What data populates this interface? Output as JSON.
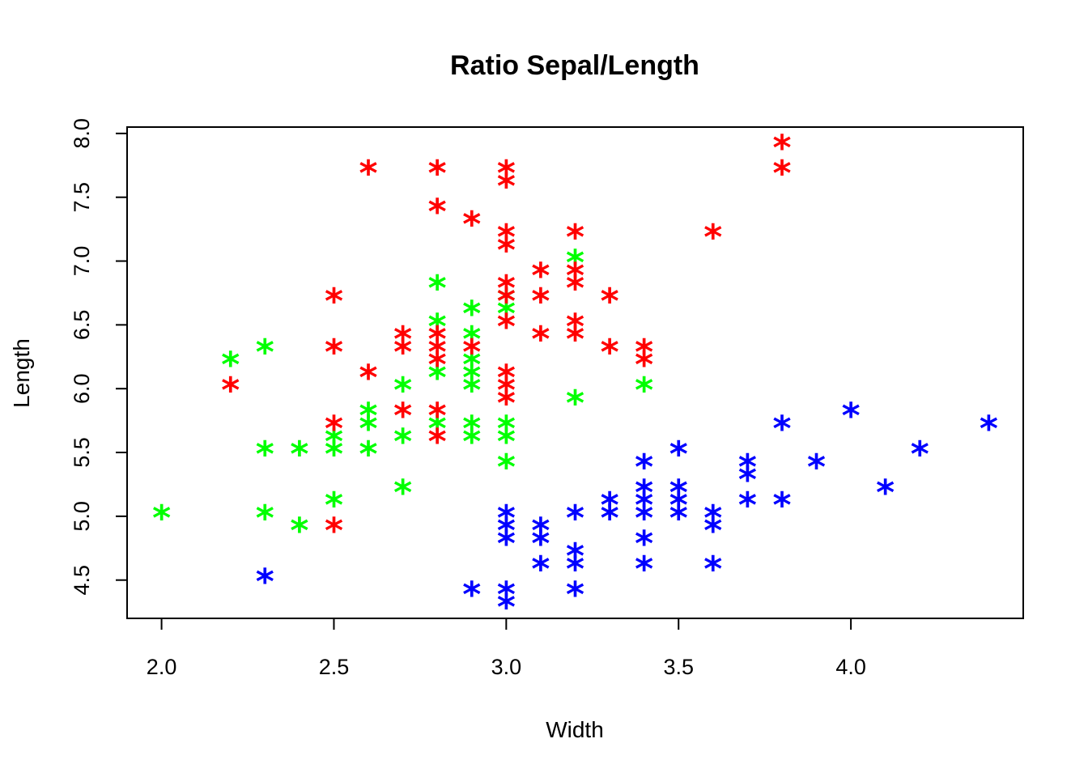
{
  "chart_data": {
    "type": "scatter",
    "title": "Ratio Sepal/Length",
    "xlabel": "Width",
    "ylabel": "Length",
    "xlim": [
      1.9,
      4.5
    ],
    "ylim": [
      4.2,
      8.05
    ],
    "xticks": [
      "2.0",
      "2.5",
      "3.0",
      "3.5",
      "4.0"
    ],
    "yticks": [
      "4.5",
      "5.0",
      "5.5",
      "6.0",
      "6.5",
      "7.0",
      "7.5",
      "8.0"
    ],
    "marker": "*",
    "grid": false,
    "legend": "none",
    "series": [
      {
        "color": "#0000ff",
        "points": [
          [
            2.3,
            4.5
          ],
          [
            2.9,
            4.4
          ],
          [
            3.0,
            4.4
          ],
          [
            3.0,
            4.3
          ],
          [
            3.0,
            5.0
          ],
          [
            3.0,
            4.9
          ],
          [
            3.0,
            4.8
          ],
          [
            3.1,
            4.9
          ],
          [
            3.1,
            4.8
          ],
          [
            3.1,
            4.6
          ],
          [
            3.2,
            5.0
          ],
          [
            3.2,
            4.7
          ],
          [
            3.2,
            4.6
          ],
          [
            3.2,
            4.4
          ],
          [
            3.3,
            5.1
          ],
          [
            3.3,
            5.0
          ],
          [
            3.4,
            5.4
          ],
          [
            3.4,
            5.2
          ],
          [
            3.4,
            5.1
          ],
          [
            3.4,
            5.0
          ],
          [
            3.4,
            4.8
          ],
          [
            3.4,
            4.6
          ],
          [
            3.5,
            5.5
          ],
          [
            3.5,
            5.2
          ],
          [
            3.5,
            5.1
          ],
          [
            3.5,
            5.0
          ],
          [
            3.6,
            5.0
          ],
          [
            3.6,
            4.9
          ],
          [
            3.6,
            4.6
          ],
          [
            3.7,
            5.4
          ],
          [
            3.7,
            5.3
          ],
          [
            3.7,
            5.1
          ],
          [
            3.8,
            5.7
          ],
          [
            3.8,
            5.1
          ],
          [
            3.9,
            5.4
          ],
          [
            4.0,
            5.8
          ],
          [
            4.1,
            5.2
          ],
          [
            4.2,
            5.5
          ],
          [
            4.4,
            5.7
          ]
        ]
      },
      {
        "color": "#00ff00",
        "points": [
          [
            2.0,
            5.0
          ],
          [
            2.2,
            6.2
          ],
          [
            2.3,
            6.3
          ],
          [
            2.3,
            5.5
          ],
          [
            2.3,
            5.0
          ],
          [
            2.4,
            5.5
          ],
          [
            2.4,
            4.9
          ],
          [
            2.5,
            5.6
          ],
          [
            2.5,
            5.5
          ],
          [
            2.5,
            5.1
          ],
          [
            2.6,
            5.8
          ],
          [
            2.6,
            5.7
          ],
          [
            2.6,
            5.5
          ],
          [
            2.7,
            6.0
          ],
          [
            2.7,
            5.6
          ],
          [
            2.7,
            5.2
          ],
          [
            2.8,
            6.8
          ],
          [
            2.8,
            6.5
          ],
          [
            2.8,
            6.1
          ],
          [
            2.8,
            5.7
          ],
          [
            2.9,
            6.6
          ],
          [
            2.9,
            6.4
          ],
          [
            2.9,
            6.2
          ],
          [
            2.9,
            6.1
          ],
          [
            2.9,
            6.0
          ],
          [
            2.9,
            5.7
          ],
          [
            2.9,
            5.6
          ],
          [
            3.0,
            6.7
          ],
          [
            3.0,
            6.6
          ],
          [
            3.0,
            5.7
          ],
          [
            3.0,
            5.6
          ],
          [
            3.0,
            5.4
          ],
          [
            3.2,
            7.0
          ],
          [
            3.2,
            5.9
          ],
          [
            3.4,
            6.0
          ]
        ]
      },
      {
        "color": "#ff0000",
        "points": [
          [
            2.2,
            6.0
          ],
          [
            2.5,
            6.7
          ],
          [
            2.5,
            6.3
          ],
          [
            2.5,
            5.7
          ],
          [
            2.5,
            4.9
          ],
          [
            2.6,
            7.7
          ],
          [
            2.6,
            6.1
          ],
          [
            2.7,
            6.4
          ],
          [
            2.7,
            6.3
          ],
          [
            2.7,
            5.8
          ],
          [
            2.8,
            7.7
          ],
          [
            2.8,
            7.4
          ],
          [
            2.8,
            6.4
          ],
          [
            2.8,
            6.3
          ],
          [
            2.8,
            6.2
          ],
          [
            2.8,
            5.8
          ],
          [
            2.8,
            5.6
          ],
          [
            2.9,
            7.3
          ],
          [
            2.9,
            6.3
          ],
          [
            3.0,
            7.7
          ],
          [
            3.0,
            7.6
          ],
          [
            3.0,
            7.2
          ],
          [
            3.0,
            7.1
          ],
          [
            3.0,
            6.8
          ],
          [
            3.0,
            6.7
          ],
          [
            3.0,
            6.5
          ],
          [
            3.0,
            6.1
          ],
          [
            3.0,
            6.0
          ],
          [
            3.0,
            5.9
          ],
          [
            3.1,
            6.9
          ],
          [
            3.1,
            6.7
          ],
          [
            3.1,
            6.4
          ],
          [
            3.2,
            7.2
          ],
          [
            3.2,
            6.9
          ],
          [
            3.2,
            6.8
          ],
          [
            3.2,
            6.5
          ],
          [
            3.2,
            6.4
          ],
          [
            3.3,
            6.7
          ],
          [
            3.3,
            6.3
          ],
          [
            3.4,
            6.3
          ],
          [
            3.4,
            6.2
          ],
          [
            3.6,
            7.2
          ],
          [
            3.8,
            7.9
          ],
          [
            3.8,
            7.7
          ]
        ]
      }
    ]
  }
}
